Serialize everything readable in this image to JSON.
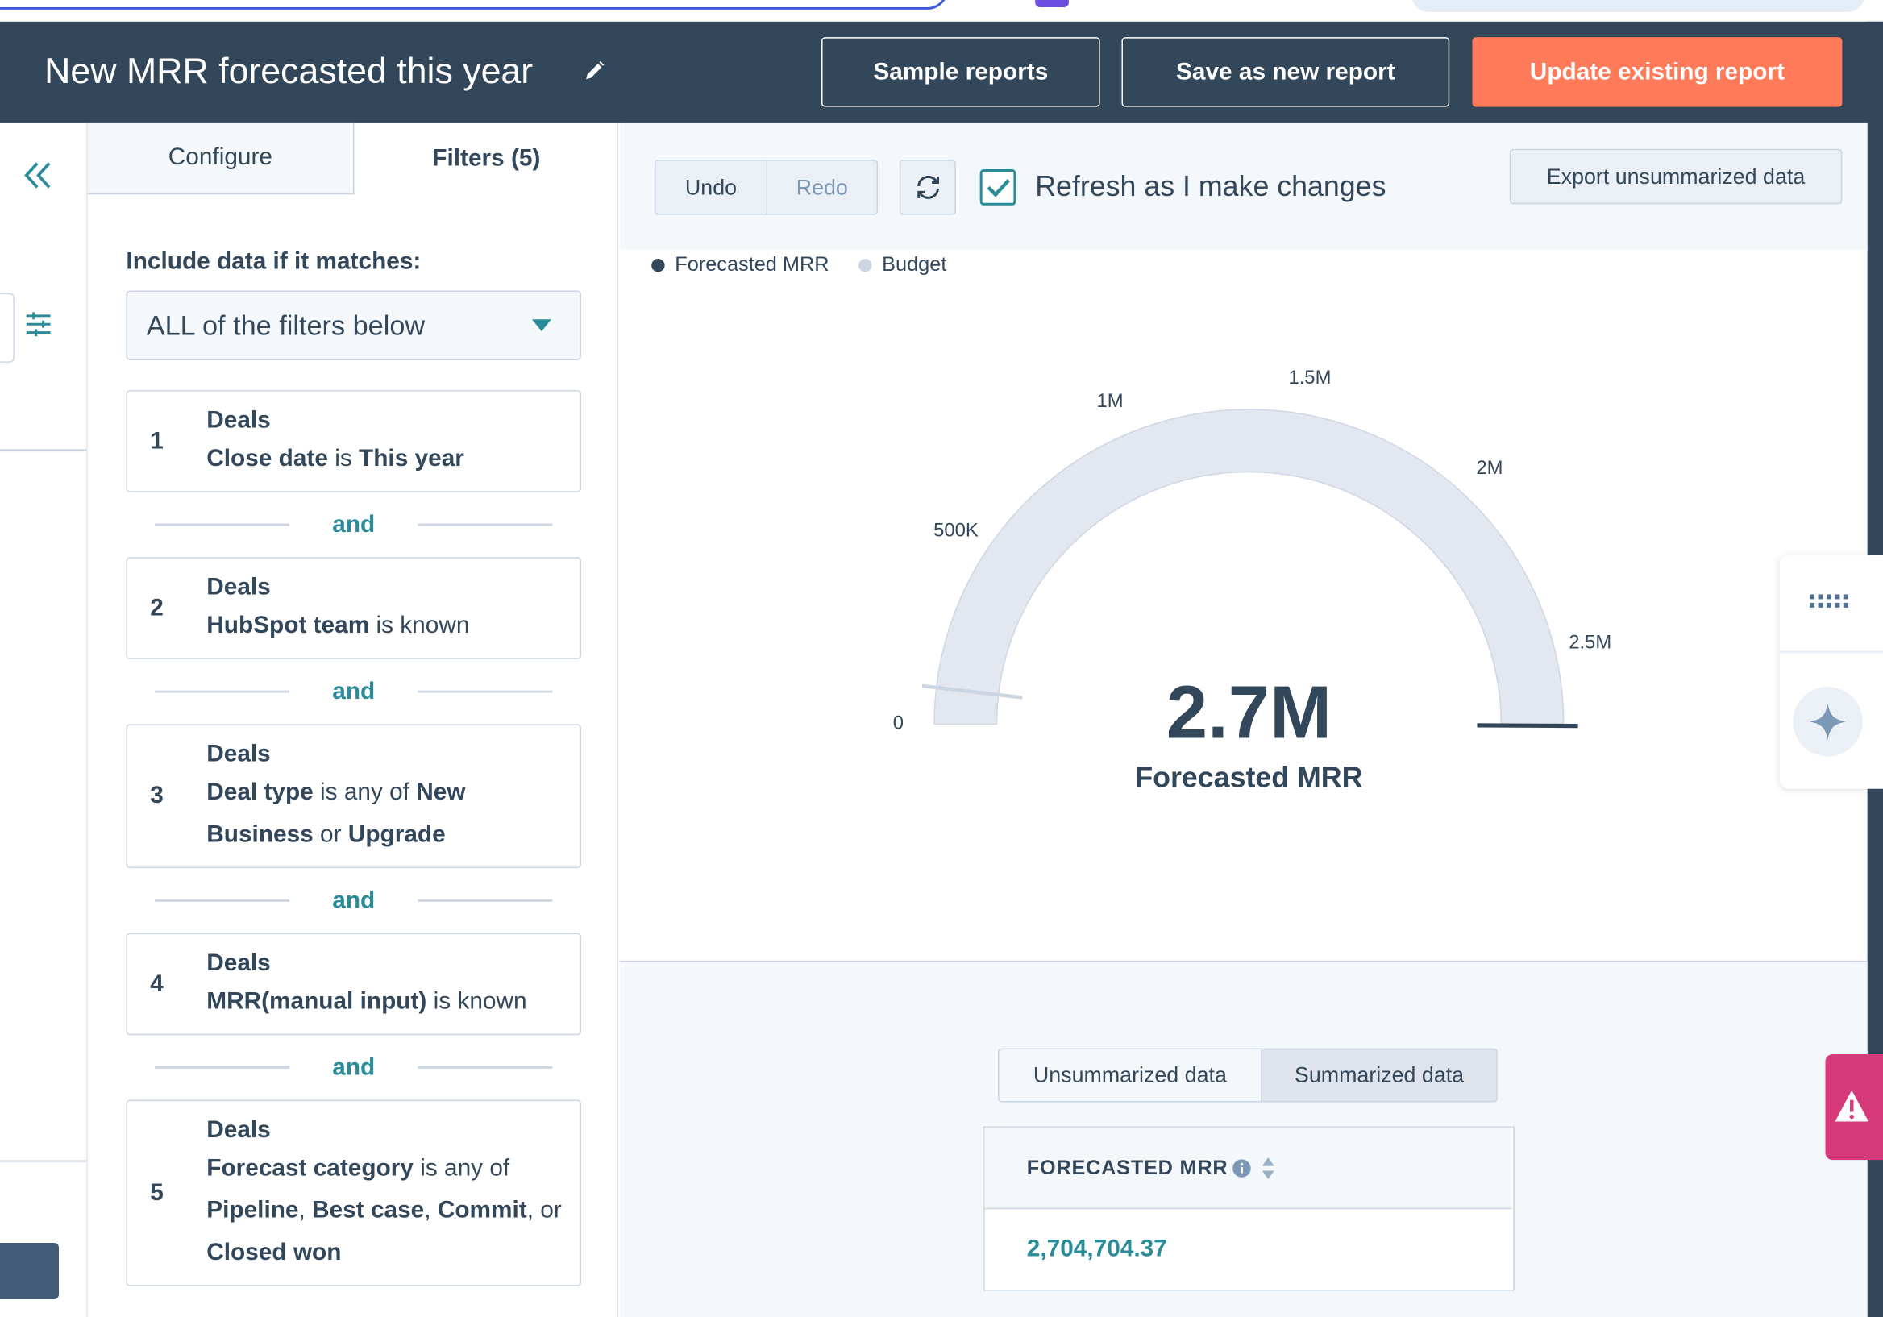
{
  "top_bar": {
    "title": "New MRR forecasted this year",
    "buttons": [
      "Sample reports",
      "Save as new report",
      "Update existing report"
    ]
  },
  "tabs": [
    "Configure",
    "Filters (5)"
  ],
  "filters": {
    "heading": "Include data if it matches:",
    "match": "ALL of the filters below",
    "joiner": "and",
    "items": [
      {
        "number": "1",
        "object": "Deals",
        "condition": [
          {
            "text": "Close date",
            "bold": true
          },
          {
            "text": " is "
          },
          {
            "text": "This year",
            "bold": true
          }
        ]
      },
      {
        "number": "2",
        "object": "Deals",
        "condition": [
          {
            "text": "HubSpot team",
            "bold": true
          },
          {
            "text": " is known"
          }
        ]
      },
      {
        "number": "3",
        "object": "Deals",
        "condition": [
          {
            "text": "Deal type",
            "bold": true
          },
          {
            "text": " is any of "
          },
          {
            "text": "New Business",
            "bold": true
          },
          {
            "text": " or "
          },
          {
            "text": "Upgrade",
            "bold": true
          }
        ]
      },
      {
        "number": "4",
        "object": "Deals",
        "condition": [
          {
            "text": "MRR(manual input)",
            "bold": true
          },
          {
            "text": " is known"
          }
        ]
      },
      {
        "number": "5",
        "object": "Deals",
        "condition": [
          {
            "text": "Forecast category",
            "bold": true
          },
          {
            "text": " is any of "
          },
          {
            "text": "Pipeline",
            "bold": true
          },
          {
            "text": ", "
          },
          {
            "text": "Best case",
            "bold": true
          },
          {
            "text": ", "
          },
          {
            "text": "Commit",
            "bold": true
          },
          {
            "text": ", or "
          },
          {
            "text": "Closed won",
            "bold": true
          }
        ]
      }
    ]
  },
  "toolbar": {
    "undo": "Undo",
    "redo": "Redo",
    "refresh_label": "Refresh as I make changes",
    "refresh_checked": true,
    "export": "Export unsummarized data"
  },
  "chart_data": {
    "type": "gauge",
    "series": [
      {
        "name": "Forecasted MRR",
        "color": "#33475b",
        "values": [
          2704704.37
        ],
        "value_labels": [
          "2.7M"
        ]
      },
      {
        "name": "Budget",
        "color": "#cbd6e2",
        "values": [
          100000
        ]
      }
    ],
    "ylim": [
      0,
      2700000
    ],
    "yticks": [
      0,
      {
        "value": 500000,
        "label": "500K"
      },
      {
        "value": 1000000,
        "label": "1M"
      },
      {
        "value": 1500000,
        "label": "1.5M"
      },
      {
        "value": 2000000,
        "label": "2M"
      },
      {
        "value": 2500000,
        "label": "2.5M"
      }
    ]
  },
  "data_tabs": [
    "Unsummarized data",
    "Summarized data"
  ],
  "table": {
    "header": "FORECASTED MRR",
    "rows": [
      [
        "2,704,704.37"
      ]
    ]
  }
}
